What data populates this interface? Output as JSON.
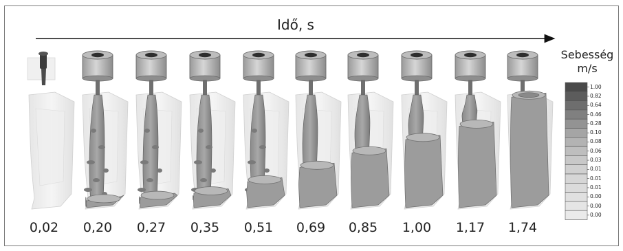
{
  "header": {
    "axis_label": "Idő, s"
  },
  "legend": {
    "title_line1": "Sebesség",
    "title_line2": "m/s",
    "values": [
      "1.00",
      "0.82",
      "0.64",
      "0.46",
      "0.28",
      "0.10",
      "0.08",
      "0.06",
      "0.03",
      "0.01",
      "0.01",
      "0.01",
      "0.00",
      "0.00",
      "0.00"
    ],
    "colors": [
      "#4a4a4a",
      "#5c5c5c",
      "#6e6e6e",
      "#808080",
      "#939393",
      "#a5a5a5",
      "#b3b3b3",
      "#bebebe",
      "#c8c8c8",
      "#d0d0d0",
      "#d6d6d6",
      "#dbdbdb",
      "#e0e0e0",
      "#e5e5e5",
      "#eaeaea"
    ]
  },
  "snapshots": {
    "times": [
      "0,02",
      "0,20",
      "0,27",
      "0,35",
      "0,51",
      "0,69",
      "0,85",
      "1,00",
      "1,17",
      "1,74"
    ],
    "fill_levels": [
      0.0,
      0.05,
      0.08,
      0.12,
      0.22,
      0.35,
      0.48,
      0.6,
      0.72,
      0.98
    ]
  }
}
